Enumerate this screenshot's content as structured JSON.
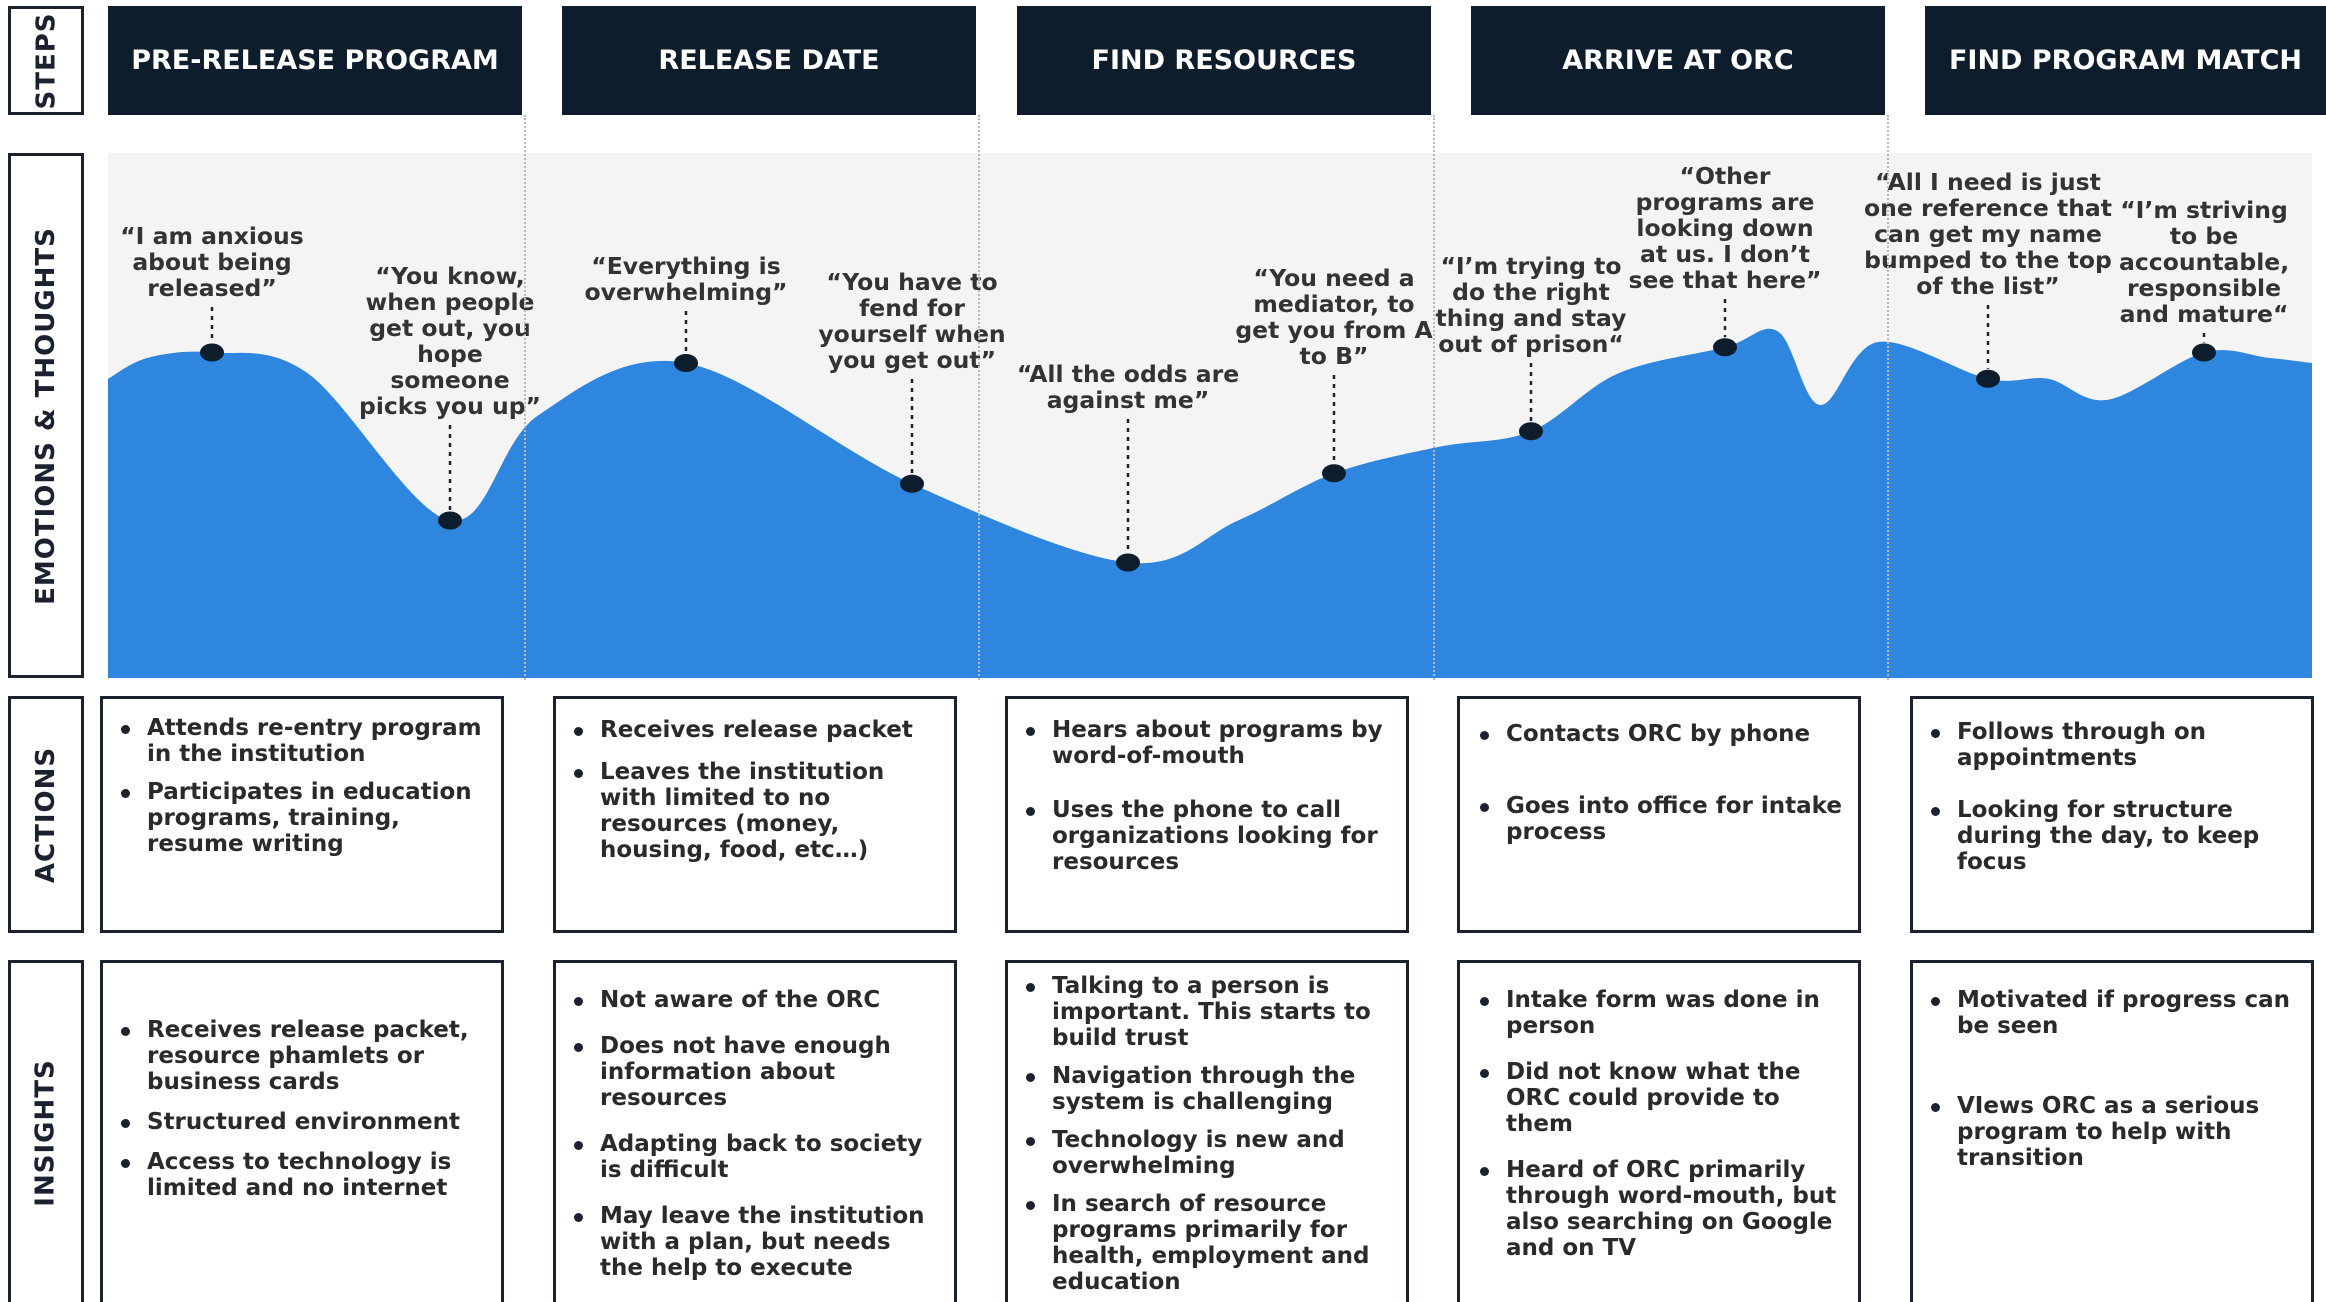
{
  "row_labels": {
    "steps": "STEPS",
    "emotions": "EMOTIONS & THOUGHTS",
    "actions": "ACTIONS",
    "insights": "INSIGHTS"
  },
  "steps": [
    "PRE-RELEASE PROGRAM",
    "RELEASE DATE",
    "FIND RESOURCES",
    "ARRIVE AT ORC",
    "FIND PROGRAM MATCH"
  ],
  "colors": {
    "step_bg": "#0e1d2c",
    "curve": "#2e86de",
    "marker": "#0e1d2c",
    "panel_bg": "#f4f4f4"
  },
  "emotion_levels": [
    {
      "quote": "“I am anxious about being released”",
      "level": 0.62
    },
    {
      "quote": "“You know, when people get out, you hope someone picks you up”",
      "level": 0.3
    },
    {
      "quote": "“Everything is overwhelming”",
      "level": 0.6
    },
    {
      "quote": "“You have to fend for yourself when you get out”",
      "level": 0.37
    },
    {
      "quote": "“All the odds are against me”",
      "level": 0.22
    },
    {
      "quote": "“You need a mediator, to get you  from A to B”",
      "level": 0.39
    },
    {
      "quote": "“I’m trying to do the right thing and stay out of prison“",
      "level": 0.47
    },
    {
      "quote": "“Other programs are looking down at us. I don’t see that here”",
      "level": 0.63
    },
    {
      "quote": "“All I need is just one reference that can get my name bumped to the top of the list”",
      "level": 0.57
    },
    {
      "quote": "“I’m striving to be accountable, responsible and mature“",
      "level": 0.62
    }
  ],
  "actions": [
    [
      "Attends re-entry program in the institution",
      "Participates in education programs, training, resume writing"
    ],
    [
      "Receives release packet",
      "Leaves the institution with limited to no resources (money, housing, food, etc…)"
    ],
    [
      "Hears about programs by word-of-mouth",
      "Uses the phone to call organizations looking for resources"
    ],
    [
      "Contacts ORC by phone",
      "Goes into office for intake process"
    ],
    [
      "Follows through on appointments",
      "Looking for structure during the day, to keep focus"
    ]
  ],
  "insights": [
    [
      "Receives release packet, resource phamlets or business cards",
      "Structured environment",
      "Access to technology is limited and no internet"
    ],
    [
      "Not aware of the ORC",
      "Does not have enough information about resources",
      "Adapting back to society is difficult",
      "May leave the institution with a plan, but needs the help to execute"
    ],
    [
      "Talking to a person is important.  This starts to build trust",
      "Navigation through the system is challenging",
      "Technology is new and overwhelming",
      "In search of resource programs primarily for health, employment and education"
    ],
    [
      "Intake form was done in person",
      "Did not know what the ORC could provide to them",
      "Heard of ORC primarily through word-mouth, but also searching on Google and on TV"
    ],
    [
      "Motivated if progress can be seen",
      "VIews ORC as a serious program to help with transition"
    ]
  ]
}
